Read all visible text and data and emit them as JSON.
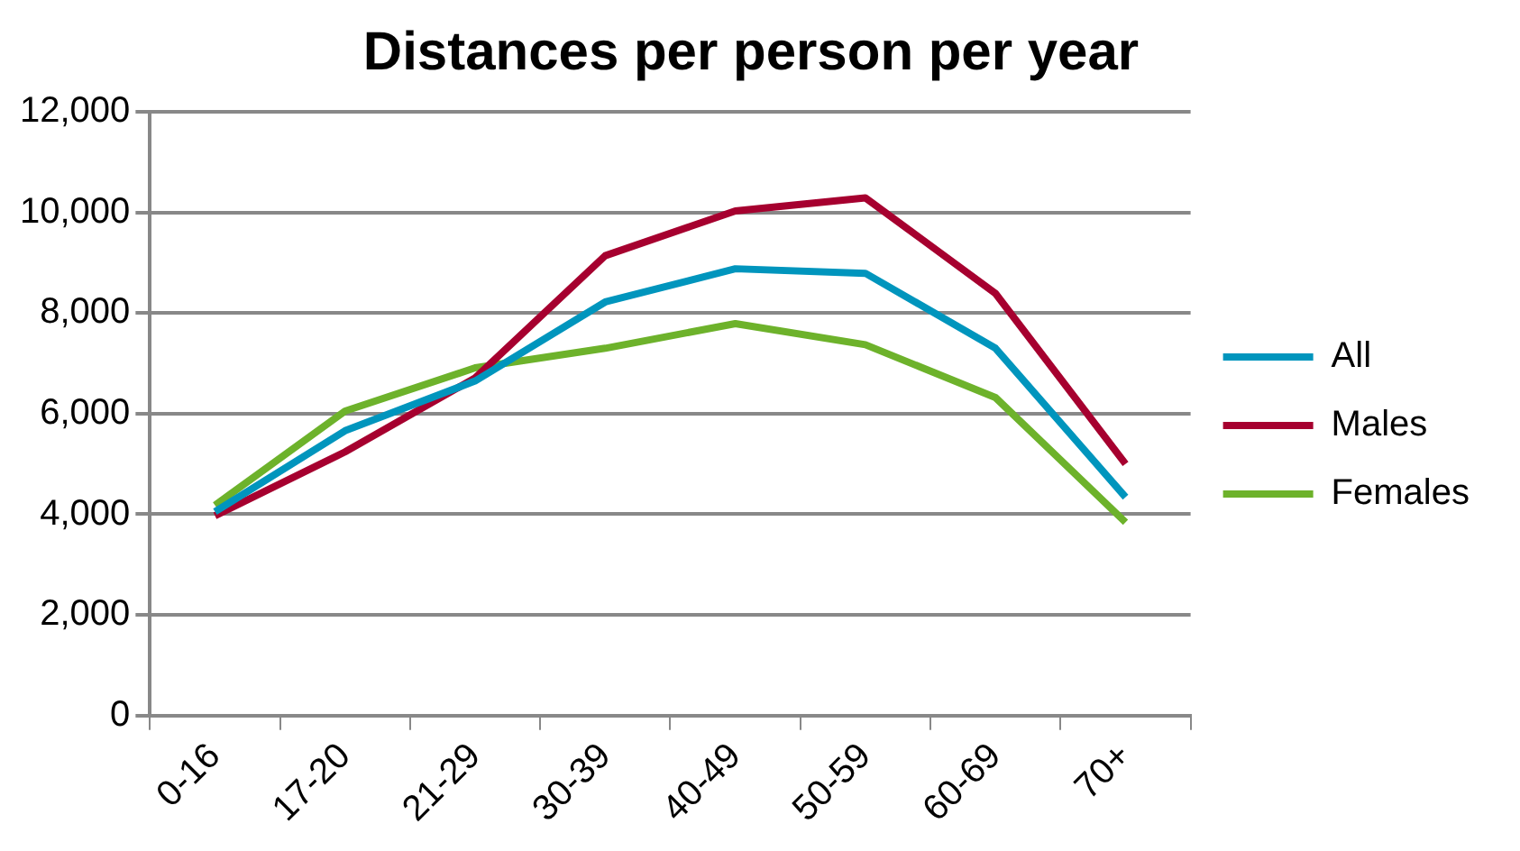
{
  "chart_data": {
    "type": "line",
    "title": "Distances per person per year",
    "categories": [
      "0-16",
      "17-20",
      "21-29",
      "30-39",
      "40-49",
      "50-59",
      "60-69",
      "70+"
    ],
    "series": [
      {
        "name": "All",
        "color": "#0095bd",
        "values": [
          4050,
          5660,
          6650,
          8220,
          8880,
          8790,
          7300,
          4340
        ]
      },
      {
        "name": "Males",
        "color": "#a6002f",
        "values": [
          3970,
          5240,
          6710,
          9140,
          10030,
          10290,
          8390,
          5000
        ]
      },
      {
        "name": "Females",
        "color": "#6db22b",
        "values": [
          4180,
          6050,
          6910,
          7300,
          7790,
          7370,
          6320,
          3840
        ]
      }
    ],
    "ylim": [
      0,
      12000
    ],
    "yticks": [
      0,
      {
        "value": 2000,
        "label": "2,000"
      },
      {
        "value": 4000,
        "label": "4,000"
      },
      {
        "value": 6000,
        "label": "6,000"
      },
      {
        "value": 8000,
        "label": "8,000"
      },
      {
        "value": 10000,
        "label": "10,000"
      },
      {
        "value": 12000,
        "label": "12,000"
      }
    ],
    "grid": "y",
    "legend": "right",
    "marker": "none",
    "line_style": "solid"
  }
}
